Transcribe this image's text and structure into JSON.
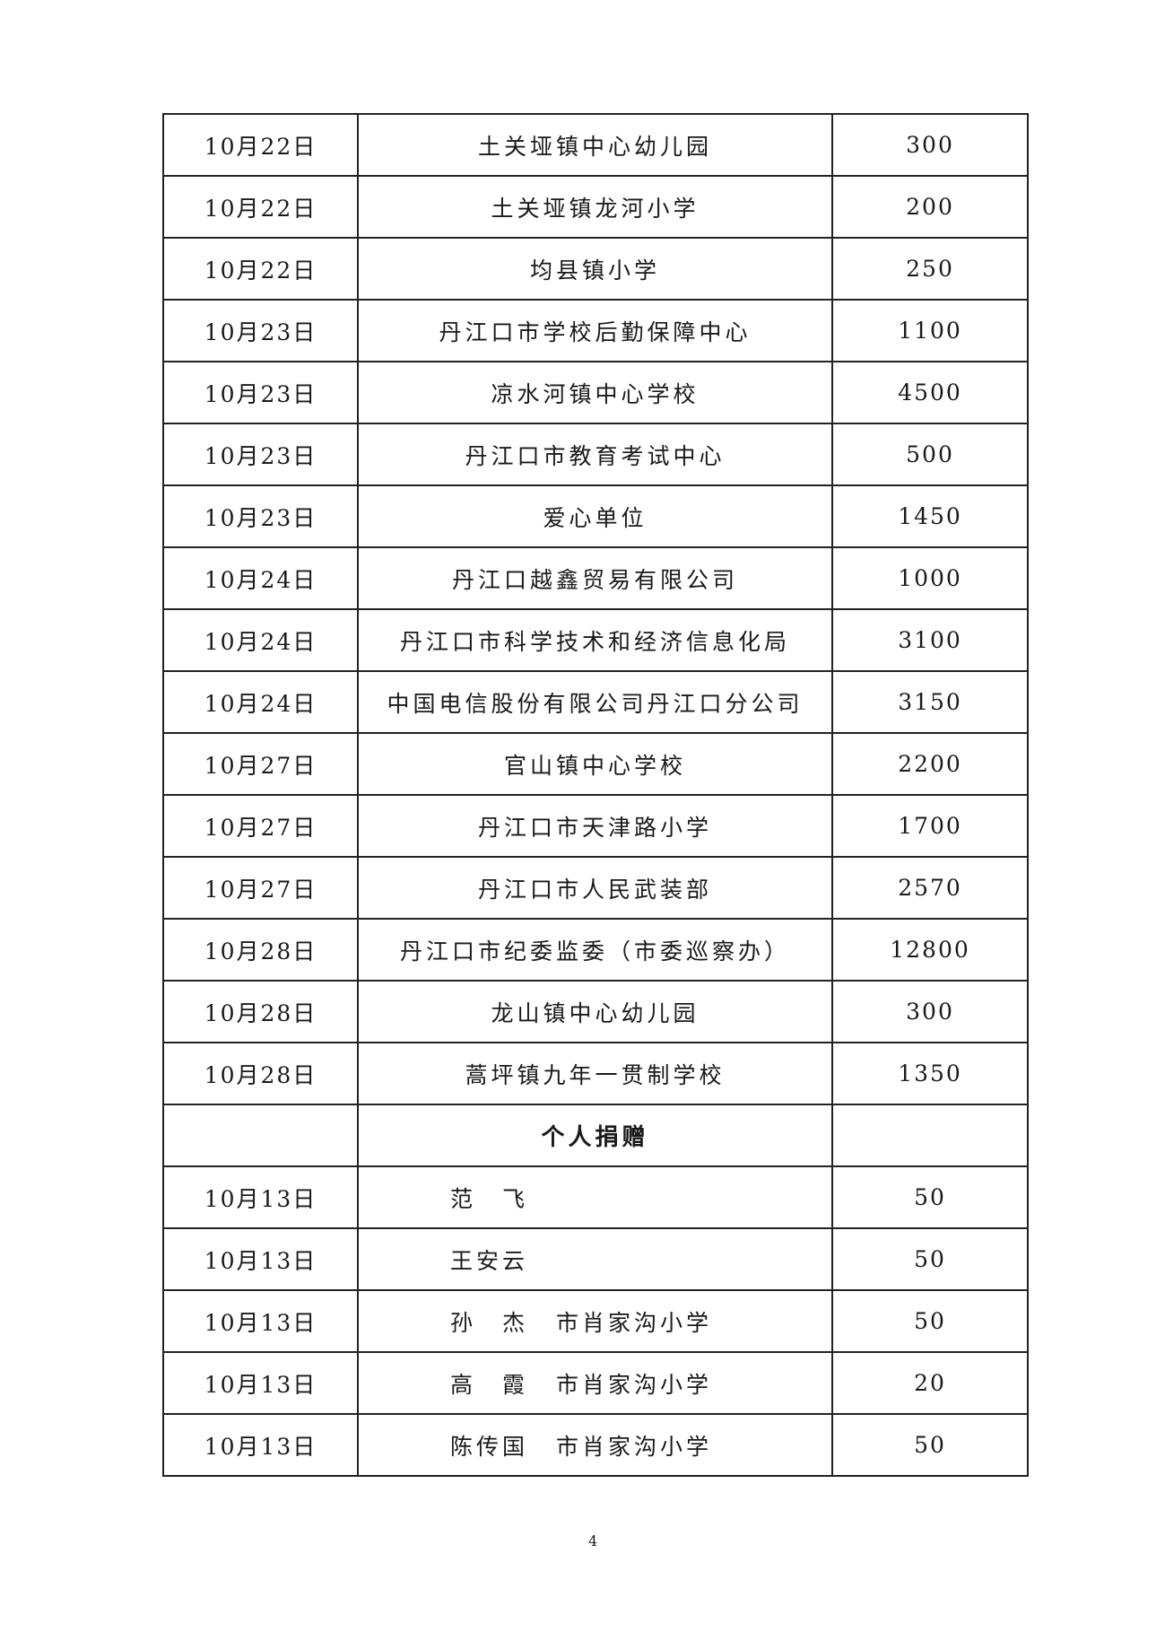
{
  "units": [
    {
      "date": "10月22日",
      "name": "土关垭镇中心幼儿园",
      "amount": "300"
    },
    {
      "date": "10月22日",
      "name": "土关垭镇龙河小学",
      "amount": "200"
    },
    {
      "date": "10月22日",
      "name": "均县镇小学",
      "amount": "250"
    },
    {
      "date": "10月23日",
      "name": "丹江口市学校后勤保障中心",
      "amount": "1100"
    },
    {
      "date": "10月23日",
      "name": "凉水河镇中心学校",
      "amount": "4500"
    },
    {
      "date": "10月23日",
      "name": "丹江口市教育考试中心",
      "amount": "500"
    },
    {
      "date": "10月23日",
      "name": "爱心单位",
      "amount": "1450"
    },
    {
      "date": "10月24日",
      "name": "丹江口越鑫贸易有限公司",
      "amount": "1000"
    },
    {
      "date": "10月24日",
      "name": "丹江口市科学技术和经济信息化局",
      "amount": "3100"
    },
    {
      "date": "10月24日",
      "name": "中国电信股份有限公司丹江口分公司",
      "amount": "3150"
    },
    {
      "date": "10月27日",
      "name": "官山镇中心学校",
      "amount": "2200"
    },
    {
      "date": "10月27日",
      "name": "丹江口市天津路小学",
      "amount": "1700"
    },
    {
      "date": "10月27日",
      "name": "丹江口市人民武装部",
      "amount": "2570"
    },
    {
      "date": "10月28日",
      "name": "丹江口市纪委监委（市委巡察办）",
      "amount": "12800"
    },
    {
      "date": "10月28日",
      "name": "龙山镇中心幼儿园",
      "amount": "300"
    },
    {
      "date": "10月28日",
      "name": "蒿坪镇九年一贯制学校",
      "amount": "1350"
    }
  ],
  "section_title": "个人捐赠",
  "individuals": [
    {
      "date": "10月13日",
      "name": "范　飞",
      "org": "",
      "amount": "50"
    },
    {
      "date": "10月13日",
      "name": "王安云",
      "org": "",
      "amount": "50"
    },
    {
      "date": "10月13日",
      "name": "孙　杰",
      "org": "市肖家沟小学",
      "amount": "50"
    },
    {
      "date": "10月13日",
      "name": "高　霞",
      "org": "市肖家沟小学",
      "amount": "20"
    },
    {
      "date": "10月13日",
      "name": "陈传国",
      "org": "市肖家沟小学",
      "amount": "50"
    }
  ],
  "page_number": "4"
}
